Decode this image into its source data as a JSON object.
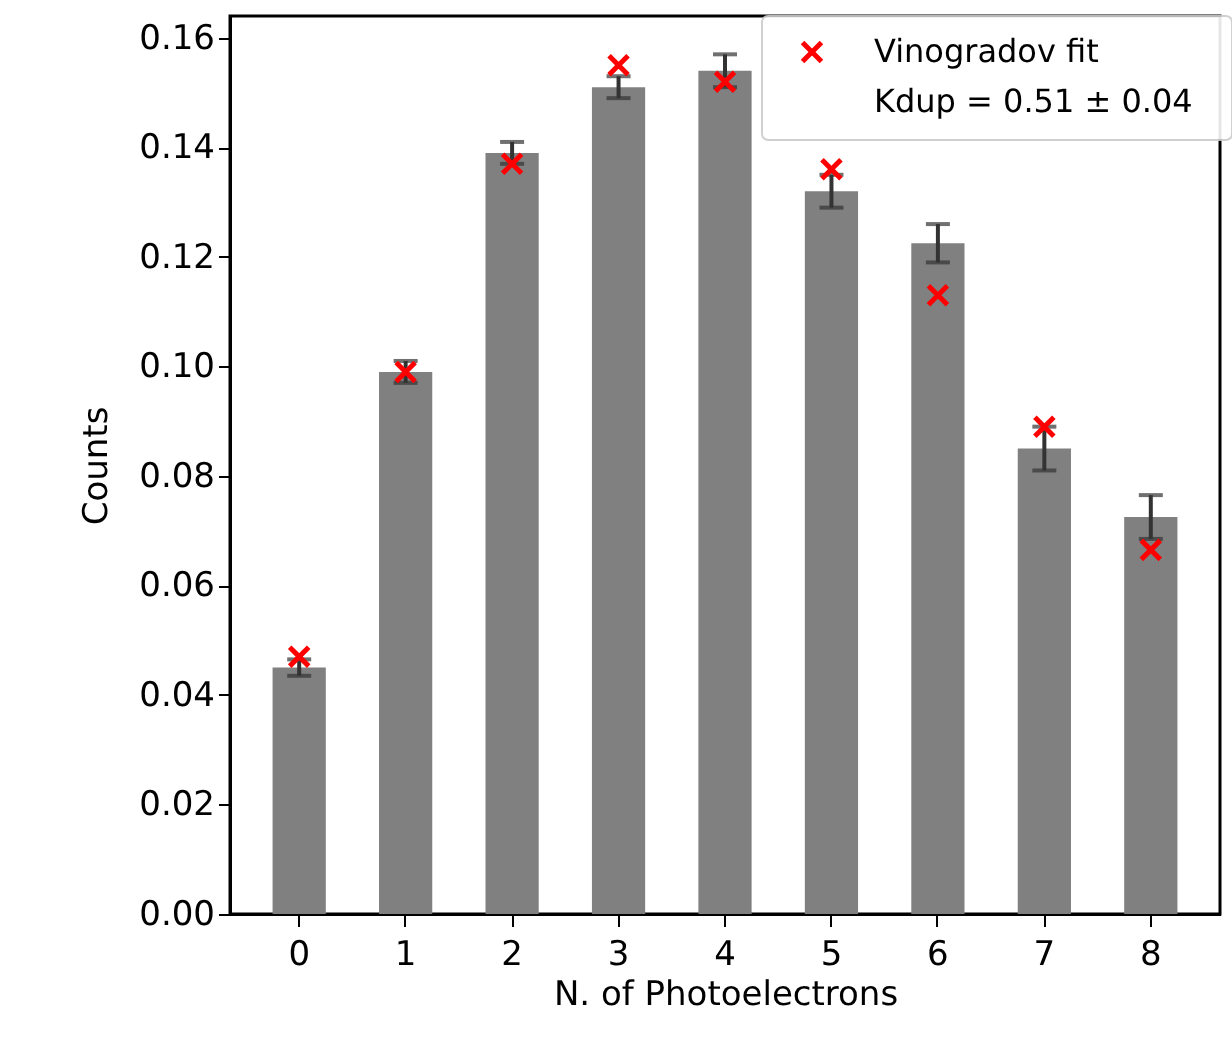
{
  "chart_data": {
    "type": "bar",
    "xlabel": "N. of Photoelectrons",
    "ylabel": "Counts",
    "categories": [
      "0",
      "1",
      "2",
      "3",
      "4",
      "5",
      "6",
      "7",
      "8"
    ],
    "series": [
      {
        "color": "#808080",
        "values": [
          0.045,
          0.099,
          0.139,
          0.151,
          0.154,
          0.132,
          0.1225,
          0.085,
          0.0725
        ],
        "errors": [
          0.0015,
          0.002,
          0.002,
          0.002,
          0.003,
          0.003,
          0.0035,
          0.004,
          0.004
        ]
      },
      {
        "type": "scatter",
        "name": "Vinogradov fit",
        "color": "#ff0000",
        "marker": "cross",
        "values": [
          0.047,
          0.099,
          0.137,
          0.155,
          0.152,
          0.136,
          0.113,
          0.089,
          0.0665
        ]
      }
    ],
    "annotations": [
      "Kdup = 0.51 ± 0.04"
    ],
    "ylim": [
      0,
      0.164
    ],
    "yticks": [
      {
        "value": 0,
        "label": "0.00"
      },
      0.02,
      0.04,
      0.06,
      0.08,
      {
        "value": 0.1,
        "label": "0.10"
      },
      0.12,
      0.14,
      0.16
    ],
    "grid": false,
    "legend": "top right"
  }
}
